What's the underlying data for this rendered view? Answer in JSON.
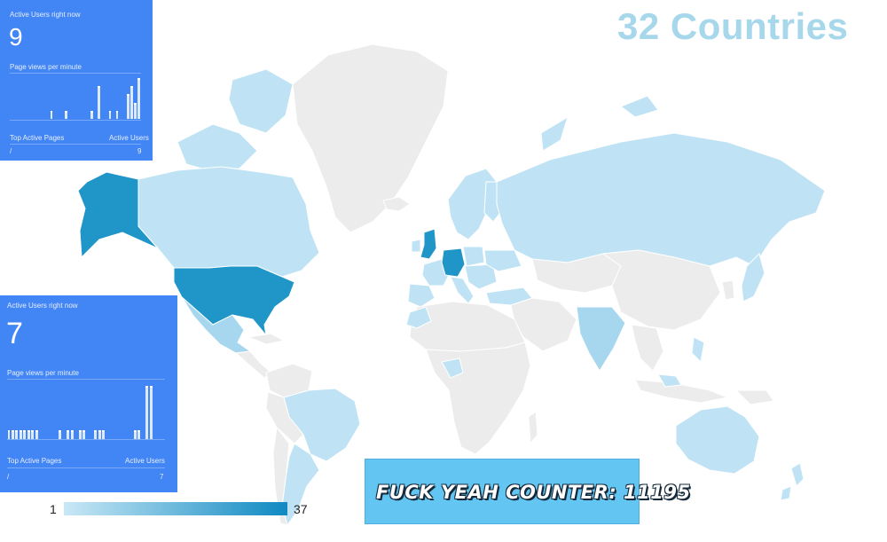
{
  "title": "32 Countries",
  "panels": [
    {
      "active_users_label": "Active Users right now",
      "active_users_value": "9",
      "pageviews_label": "Page views per minute",
      "bars": [
        0,
        0,
        0,
        0,
        0,
        0,
        0,
        0,
        0,
        0,
        0,
        1,
        0,
        0,
        0,
        1,
        0,
        0,
        0,
        0,
        0,
        0,
        1,
        0,
        4,
        0,
        0,
        1,
        0,
        1,
        0,
        0,
        3,
        4,
        2,
        5
      ],
      "top_pages_label": "Top Active Pages",
      "col_label": "Active Users",
      "row_page": "/",
      "row_users": "9"
    },
    {
      "active_users_label": "Active Users right now",
      "active_users_value": "7",
      "pageviews_label": "Page views per minute",
      "bars": [
        1,
        1,
        1,
        1,
        1,
        1,
        1,
        1,
        0,
        0,
        0,
        0,
        0,
        1,
        0,
        1,
        1,
        0,
        1,
        1,
        0,
        0,
        1,
        1,
        1,
        0,
        0,
        0,
        0,
        0,
        0,
        0,
        1,
        1,
        0,
        6,
        6,
        0,
        0,
        0
      ],
      "top_pages_label": "Top Active Pages",
      "col_label": "Active Users",
      "row_page": "/",
      "row_users": "7"
    }
  ],
  "legend": {
    "min": "1",
    "max": "37",
    "min_color": "#c9e8f6",
    "max_color": "#0f89c2"
  },
  "counter": {
    "text": "FUCK YEAH COUNTER: 11195"
  },
  "colors": {
    "land": "#ececec",
    "light": "#bfe3f4",
    "mid": "#a6d7ee",
    "dark": "#1f95c8",
    "panel": "#4285f4",
    "counter_bg": "#63c5f1"
  }
}
